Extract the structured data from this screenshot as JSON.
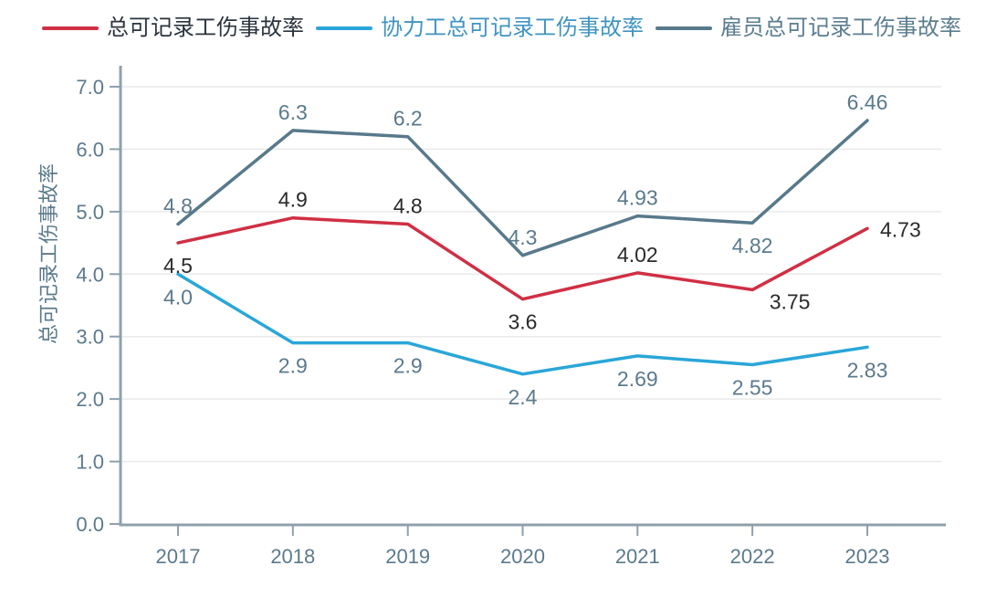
{
  "chart_data": {
    "type": "line",
    "x": [
      2017,
      2018,
      2019,
      2020,
      2021,
      2022,
      2023
    ],
    "ylabel": "总可记录工伤事故率",
    "ylim": [
      0,
      7
    ],
    "grid": true,
    "legend_position": "top",
    "axes": {
      "y_ticks": [
        "0.0",
        "1.0",
        "2.0",
        "3.0",
        "4.0",
        "5.0",
        "6.0",
        "7.0"
      ],
      "x_ticks": [
        "2017",
        "2018",
        "2019",
        "2020",
        "2021",
        "2022",
        "2023"
      ],
      "tick_color": "#5b7a8c",
      "axis_color": "#8fa0ab",
      "grid_color": "#eaeaea"
    },
    "series": [
      {
        "name": "雇员总可记录工伤事故率",
        "color": "#58798b",
        "values": [
          4.8,
          6.3,
          6.2,
          4.3,
          4.93,
          4.82,
          6.46
        ],
        "labels": [
          "4.8",
          "6.3",
          "6.2",
          "4.3",
          "4.93",
          "4.82",
          "6.46"
        ],
        "label_color": "#5b7a8c",
        "legend_text_color": "#5b7d8f",
        "label_pos": [
          "above",
          "above",
          "above",
          "above",
          "above",
          "below",
          "above"
        ]
      },
      {
        "name": "协力工总可记录工伤事故率",
        "color": "#2aa6d8",
        "values": [
          4.0,
          2.9,
          2.9,
          2.4,
          2.69,
          2.55,
          2.83
        ],
        "labels": [
          "4.0",
          "2.9",
          "2.9",
          "2.4",
          "2.69",
          "2.55",
          "2.83"
        ],
        "label_color": "#5b7a8c",
        "legend_text_color": "#3f94c0",
        "label_pos": [
          "below",
          "below",
          "below",
          "below",
          "below",
          "below",
          "below"
        ]
      },
      {
        "name": "总可记录工伤事故率",
        "color": "#d02f44",
        "values": [
          4.5,
          4.9,
          4.8,
          3.6,
          4.02,
          3.75,
          4.73
        ],
        "labels": [
          "4.5",
          "4.9",
          "4.8",
          "3.6",
          "4.02",
          "3.75",
          "4.73"
        ],
        "label_color": "#2b2b2b",
        "legend_text_color": "#2a333d",
        "label_pos": [
          "below",
          "above",
          "above",
          "below",
          "above",
          "below-right",
          "right"
        ]
      }
    ],
    "legend_order": [
      2,
      1,
      0
    ]
  }
}
